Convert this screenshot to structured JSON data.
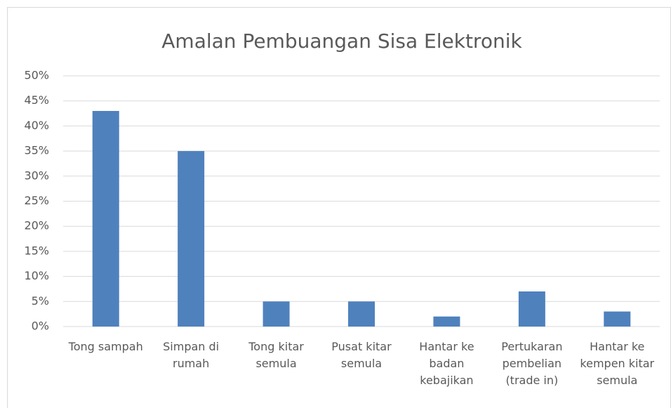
{
  "chart_data": {
    "type": "bar",
    "title": "Amalan Pembuangan Sisa Elektronik",
    "categories": [
      "Tong sampah",
      "Simpan di rumah",
      "Tong kitar semula",
      "Pusat kitar semula",
      "Hantar ke badan kebajikan",
      "Pertukaran pembelian (trade in)",
      "Hantar ke kempen kitar semula"
    ],
    "values": [
      43,
      35,
      5,
      5,
      2,
      7,
      3
    ],
    "color": "#4f81bd",
    "ylim": [
      0,
      50
    ],
    "yticks": [
      {
        "value": 0,
        "label": "0%"
      },
      {
        "value": 5,
        "label": "5%"
      },
      {
        "value": 10,
        "label": "10%"
      },
      {
        "value": 15,
        "label": "15%"
      },
      {
        "value": 20,
        "label": "20%"
      },
      {
        "value": 25,
        "label": "25%"
      },
      {
        "value": 30,
        "label": "30%"
      },
      {
        "value": 35,
        "label": "35%"
      },
      {
        "value": 40,
        "label": "40%"
      },
      {
        "value": 45,
        "label": "45%"
      },
      {
        "value": 50,
        "label": "50%"
      }
    ],
    "grid": true
  }
}
